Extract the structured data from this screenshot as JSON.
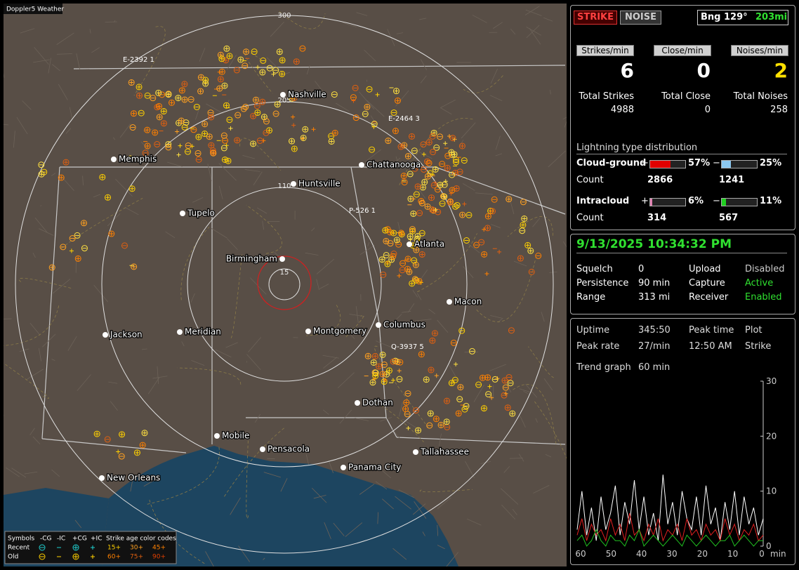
{
  "map": {
    "title": "Doppler5 Weather",
    "range_labels": [
      "300",
      "205",
      "110",
      "15"
    ],
    "cities": [
      "Nashville",
      "Memphis",
      "Chattanooga",
      "Huntsville",
      "Tupelo",
      "Atlanta",
      "Birmingham",
      "Macon",
      "Jackson",
      "Meridian",
      "Montgomery",
      "Columbus",
      "Dothan",
      "Mobile",
      "Pensacola",
      "Tallahassee",
      "Panama City",
      "New Orleans"
    ],
    "strike_labels": [
      "E-2392 1",
      "E-2464 3",
      "P-526 1",
      "Q-3937 5"
    ],
    "legend": {
      "header": [
        "Symbols",
        "-CG",
        "-IC",
        "+CG",
        "+IC",
        "Strike age color codes"
      ],
      "recent": [
        "Recent",
        "15+",
        "30+",
        "45+"
      ],
      "old": [
        "Old",
        "60+",
        "75+",
        "90+"
      ]
    }
  },
  "status": {
    "modes": [
      "STRIKE",
      "NOISE"
    ],
    "bearing": "Bng 129°",
    "distance": "203mi",
    "rates": [
      {
        "label": "Strikes/min",
        "value": 6,
        "total_label": "Total Strikes",
        "total": 4988
      },
      {
        "label": "Close/min",
        "value": 0,
        "total_label": "Total Close",
        "total": 0
      },
      {
        "label": "Noises/min",
        "value": 2,
        "total_label": "Total Noises",
        "total": 258
      }
    ],
    "distribution": {
      "title": "Lightning type distribution",
      "count_label": "Count",
      "rows": [
        {
          "name": "Cloud-ground",
          "items": [
            {
              "sign": "+",
              "percent": 57,
              "percent_label": "57%",
              "count": 2866,
              "color": "#e00000"
            },
            {
              "sign": "−",
              "percent": 25,
              "percent_label": "25%",
              "count": 1241,
              "color": "#8cc8f0"
            }
          ]
        },
        {
          "name": "Intracloud",
          "items": [
            {
              "sign": "+",
              "percent": 6,
              "percent_label": "6%",
              "count": 314,
              "color": "#e080b0"
            },
            {
              "sign": "−",
              "percent": 11,
              "percent_label": "11%",
              "count": 567,
              "color": "#20d020"
            }
          ]
        }
      ]
    }
  },
  "settings": {
    "datetime": "9/13/2025 10:34:32 PM",
    "rows": [
      [
        "Squelch",
        "0",
        "Upload",
        "Disabled"
      ],
      [
        "Persistence",
        "90 min",
        "Capture",
        "Active"
      ],
      [
        "Range",
        "313 mi",
        "Receiver",
        "Enabled"
      ]
    ]
  },
  "stats": {
    "rows": [
      [
        "Uptime",
        "345:50",
        "Peak time",
        "Plot"
      ],
      [
        "Peak rate",
        "27/min",
        "12:50 AM",
        "Strike"
      ],
      [
        "Trend graph",
        "60 min"
      ]
    ],
    "trend": {
      "yticks": [
        0,
        10,
        20,
        30
      ],
      "ylim": [
        0,
        30
      ],
      "xticks": [
        60,
        50,
        40,
        30,
        20,
        10,
        0
      ],
      "x_unit": "min",
      "series": [
        {
          "color": "#ffffff",
          "values": [
            3,
            10,
            2,
            7,
            1,
            9,
            3,
            6,
            11,
            2,
            8,
            4,
            12,
            3,
            9,
            2,
            6,
            1,
            13,
            4,
            8,
            2,
            10,
            5,
            3,
            9,
            2,
            11,
            4,
            7,
            1,
            8,
            3,
            10,
            2,
            9,
            4,
            7,
            2,
            5
          ]
        },
        {
          "color": "#e02020",
          "values": [
            2,
            5,
            1,
            4,
            2,
            3,
            1,
            5,
            2,
            4,
            1,
            6,
            2,
            3,
            1,
            4,
            2,
            5,
            1,
            3,
            2,
            4,
            1,
            5,
            2,
            3,
            1,
            4,
            2,
            3,
            1,
            5,
            2,
            4,
            1,
            3,
            2,
            4,
            1,
            2
          ]
        },
        {
          "color": "#20c020",
          "values": [
            1,
            2,
            0,
            1,
            3,
            1,
            0,
            2,
            1,
            1,
            0,
            2,
            1,
            3,
            0,
            1,
            2,
            1,
            0,
            1,
            2,
            1,
            0,
            2,
            1,
            0,
            1,
            2,
            1,
            0,
            1,
            1,
            2,
            0,
            1,
            2,
            1,
            0,
            1,
            1
          ]
        }
      ]
    }
  }
}
